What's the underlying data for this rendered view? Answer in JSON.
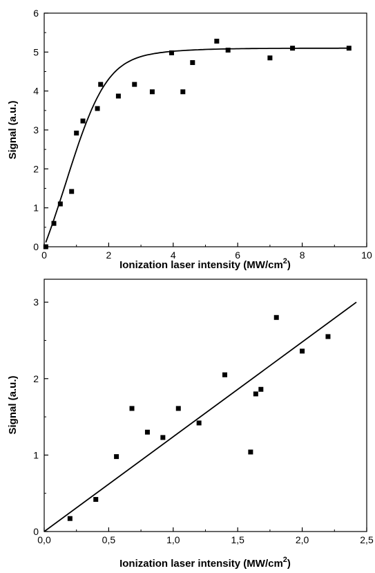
{
  "chart_data": [
    {
      "type": "scatter",
      "xlabel_main": "Ionization laser intensity",
      "xlabel_unit": "(MW/cm",
      "xlabel_sup": "2",
      "xlabel_close": ")",
      "ylabel": "Signal (a.u.)",
      "xlim": [
        0,
        10
      ],
      "ylim": [
        0,
        6
      ],
      "x_ticks": [
        "0",
        "2",
        "4",
        "6",
        "8",
        "10"
      ],
      "y_ticks": [
        "0",
        "1",
        "2",
        "3",
        "4",
        "5",
        "6"
      ],
      "series": [
        {
          "x": [
            0.05,
            0.3,
            0.5,
            0.85,
            1.0,
            1.2,
            1.65,
            1.75,
            2.3,
            2.8,
            3.35,
            3.95,
            4.3,
            4.6,
            5.35,
            5.7,
            7.0,
            7.7,
            9.45
          ],
          "y": [
            0.0,
            0.6,
            1.1,
            1.42,
            2.92,
            3.23,
            3.55,
            4.17,
            3.87,
            4.17,
            3.98,
            4.98,
            3.98,
            4.73,
            5.28,
            5.05,
            4.85,
            5.1,
            5.1
          ]
        }
      ],
      "fit": {
        "type": "saturation-curve",
        "plateau": 5.1,
        "slope_param": 1.0,
        "x_range": [
          0.05,
          9.5
        ]
      }
    },
    {
      "type": "scatter",
      "xlabel_main": "Ionization laser intensity",
      "xlabel_unit": "(MW/cm",
      "xlabel_sup": "2",
      "xlabel_close": ")",
      "ylabel": "Signal (a.u.)",
      "xlim": [
        0,
        2.5
      ],
      "ylim": [
        0,
        3.3
      ],
      "x_ticks": [
        "0,0",
        "0,5",
        "1,0",
        "1,5",
        "2,0",
        "2,5"
      ],
      "y_ticks": [
        "0",
        "1",
        "2",
        "3"
      ],
      "series": [
        {
          "x": [
            0.2,
            0.4,
            0.56,
            0.68,
            0.8,
            0.92,
            1.04,
            1.2,
            1.4,
            1.6,
            1.64,
            1.68,
            1.8,
            2.0,
            2.2
          ],
          "y": [
            0.17,
            0.42,
            0.98,
            1.61,
            1.3,
            1.23,
            1.61,
            1.42,
            2.05,
            1.04,
            1.8,
            1.86,
            2.8,
            2.36,
            2.55
          ]
        }
      ],
      "fit": {
        "type": "linear",
        "x_range": [
          0,
          2.42
        ],
        "y_range": [
          0,
          3.0
        ]
      }
    }
  ]
}
